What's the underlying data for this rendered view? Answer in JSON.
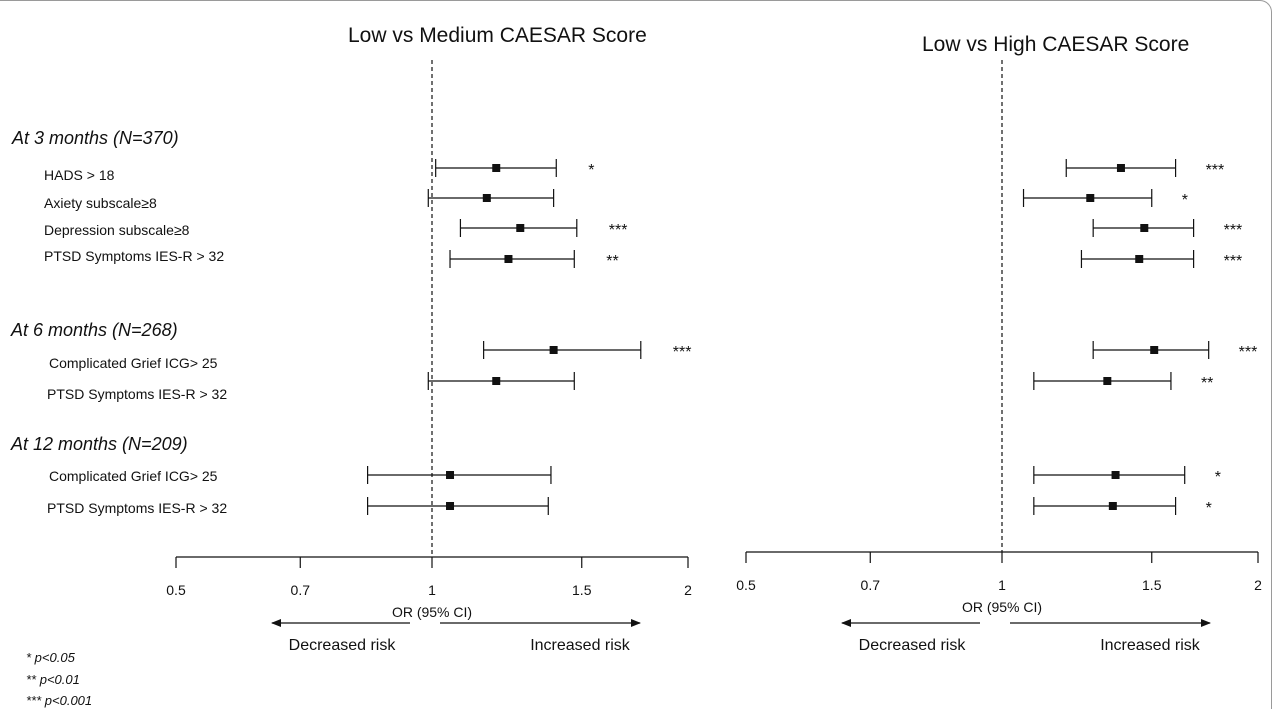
{
  "chart_data": [
    {
      "type": "forest",
      "title": "Low vs Medium CAESAR Score",
      "xlabel": "OR (95% CI)",
      "x_scale": "log",
      "xlim": [
        0.5,
        2
      ],
      "xticks": [
        "0.5",
        "0.7",
        "1",
        "1.5",
        "2"
      ],
      "reference_line": 1,
      "direction_labels": {
        "left": "Decreased risk",
        "right": "Increased risk"
      },
      "rows": [
        {
          "label": "HADS > 18",
          "or": 1.19,
          "ci": [
            1.01,
            1.4
          ],
          "sig": "*"
        },
        {
          "label": "Axiety subscale≥8",
          "or": 1.16,
          "ci": [
            0.99,
            1.39
          ],
          "sig": ""
        },
        {
          "label": "Depression subscale≥8",
          "or": 1.27,
          "ci": [
            1.08,
            1.48
          ],
          "sig": "***"
        },
        {
          "label": "PTSD Symptoms  IES-R > 32",
          "or": 1.23,
          "ci": [
            1.05,
            1.47
          ],
          "sig": "**"
        },
        {
          "label": "Complicated Grief  ICG> 25",
          "or": 1.39,
          "ci": [
            1.15,
            1.76
          ],
          "sig": "***"
        },
        {
          "label": "PTSD Symptoms  IES-R > 32",
          "or": 1.19,
          "ci": [
            0.99,
            1.47
          ],
          "sig": ""
        },
        {
          "label": "Complicated Grief  ICG> 25",
          "or": 1.05,
          "ci": [
            0.84,
            1.38
          ],
          "sig": ""
        },
        {
          "label": "PTSD Symptoms  IES-R > 32",
          "or": 1.05,
          "ci": [
            0.84,
            1.37
          ],
          "sig": ""
        }
      ]
    },
    {
      "type": "forest",
      "title": "Low vs High CAESAR Score",
      "xlabel": "OR (95% CI)",
      "x_scale": "log",
      "xlim": [
        0.5,
        2
      ],
      "xticks": [
        "0.5",
        "0.7",
        "1",
        "1.5",
        "2"
      ],
      "reference_line": 1,
      "direction_labels": {
        "left": "Decreased risk",
        "right": "Increased risk"
      },
      "rows": [
        {
          "label": "HADS > 18",
          "or": 1.38,
          "ci": [
            1.19,
            1.6
          ],
          "sig": "***"
        },
        {
          "label": "Axiety subscale≥8",
          "or": 1.27,
          "ci": [
            1.06,
            1.5
          ],
          "sig": "*"
        },
        {
          "label": "Depression subscale≥8",
          "or": 1.47,
          "ci": [
            1.28,
            1.68
          ],
          "sig": "***"
        },
        {
          "label": "PTSD Symptoms  IES-R > 32",
          "or": 1.45,
          "ci": [
            1.24,
            1.68
          ],
          "sig": "***"
        },
        {
          "label": "Complicated Grief  ICG> 25",
          "or": 1.51,
          "ci": [
            1.28,
            1.75
          ],
          "sig": "***"
        },
        {
          "label": "PTSD Symptoms  IES-R > 32",
          "or": 1.33,
          "ci": [
            1.09,
            1.58
          ],
          "sig": "**"
        },
        {
          "label": "Complicated Grief  ICG> 25",
          "or": 1.36,
          "ci": [
            1.09,
            1.64
          ],
          "sig": "*"
        },
        {
          "label": "PTSD Symptoms  IES-R > 32",
          "or": 1.35,
          "ci": [
            1.09,
            1.6
          ],
          "sig": "*"
        }
      ]
    }
  ],
  "groups": [
    {
      "label": "At 3 months (N=370)"
    },
    {
      "label": "At 6 months (N=268)"
    },
    {
      "label": "At 12 months (N=209)"
    }
  ],
  "row_labels": [
    "HADS > 18",
    "Axiety subscale≥8",
    "Depression subscale≥8",
    "PTSD Symptoms  IES-R > 32",
    "Complicated Grief  ICG> 25",
    "PTSD Symptoms  IES-R > 32",
    "Complicated Grief  ICG> 25",
    "PTSD Symptoms  IES-R > 32"
  ],
  "footnotes": [
    "* p<0.05",
    "** p<0.01",
    "*** p<0.001"
  ]
}
